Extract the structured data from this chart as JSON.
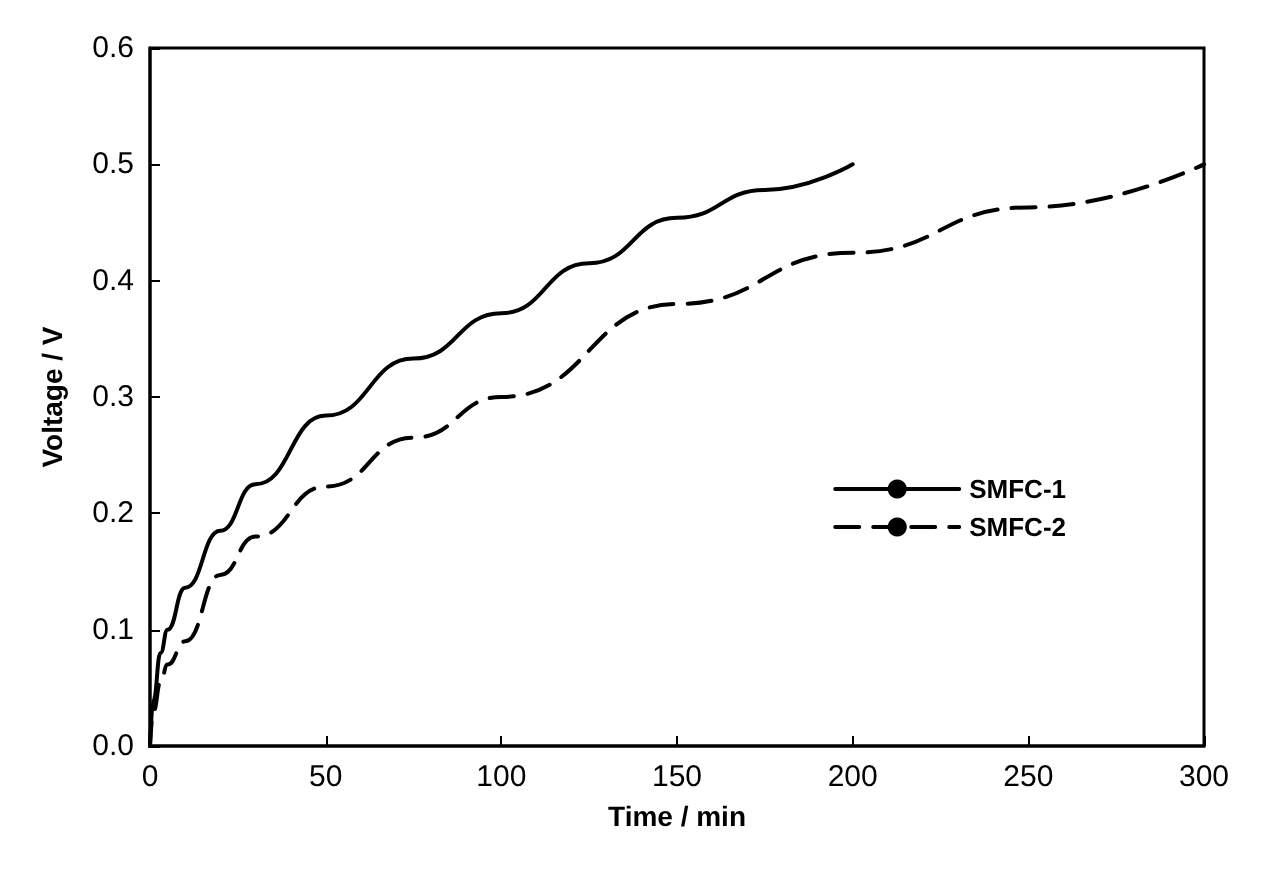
{
  "chart_data": {
    "type": "line",
    "xlabel": "Time / min",
    "ylabel": "Voltage / V",
    "xlim": [
      0,
      300
    ],
    "xticks": [
      0,
      50,
      100,
      150,
      200,
      250,
      300
    ],
    "ylim": [
      0,
      0.6
    ],
    "yticks": [
      {
        "value": 0,
        "label": "0.0"
      },
      0.1,
      0.2,
      0.3,
      0.4,
      0.5,
      0.6
    ],
    "grid": false,
    "legend": "right",
    "marker": "none",
    "series": [
      {
        "name": "SMFC-1",
        "color": "#000000",
        "line_style": "solid",
        "x": [
          0,
          1,
          3,
          5,
          10,
          20,
          30,
          50,
          75,
          100,
          125,
          150,
          175,
          200
        ],
        "values": [
          0,
          0.04,
          0.08,
          0.1,
          0.136,
          0.185,
          0.225,
          0.284,
          0.333,
          0.372,
          0.415,
          0.454,
          0.478,
          0.5
        ]
      },
      {
        "name": "SMFC-2",
        "color": "#000000",
        "line_style": "dashed",
        "x": [
          0,
          1,
          3,
          5,
          10,
          20,
          30,
          50,
          75,
          100,
          150,
          200,
          250,
          300
        ],
        "values": [
          0,
          0.03,
          0.055,
          0.07,
          0.09,
          0.147,
          0.18,
          0.223,
          0.265,
          0.3,
          0.38,
          0.424,
          0.463,
          0.5
        ]
      }
    ]
  }
}
